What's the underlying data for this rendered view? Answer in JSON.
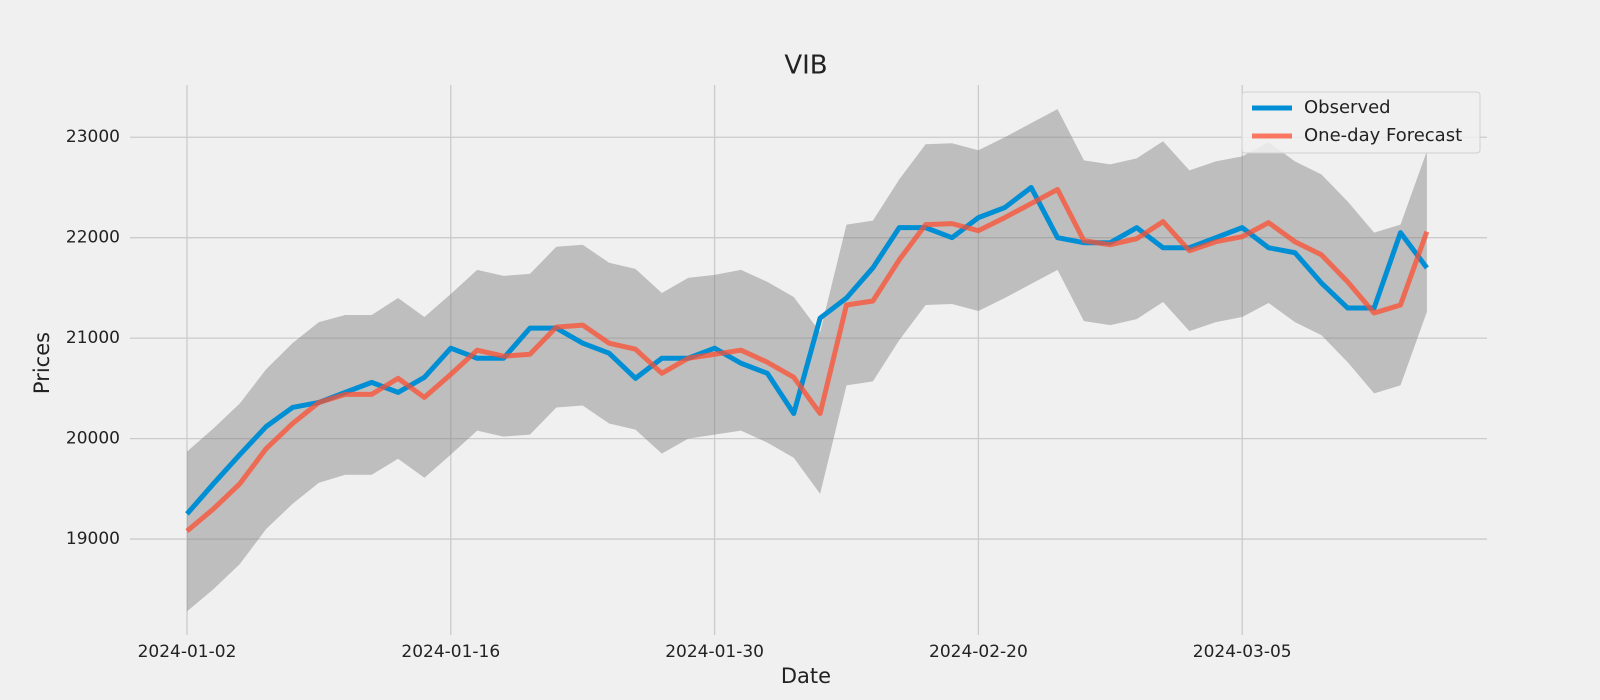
{
  "chart_data": {
    "type": "line",
    "title": "VIB",
    "x_label": "Date",
    "y_label": "Prices",
    "categories": [
      "2024-01-02",
      null,
      null,
      null,
      null,
      null,
      null,
      null,
      null,
      null,
      "2024-01-16",
      null,
      null,
      null,
      null,
      null,
      null,
      null,
      null,
      null,
      "2024-01-30",
      null,
      null,
      null,
      null,
      null,
      null,
      null,
      null,
      null,
      "2024-02-20",
      null,
      null,
      null,
      null,
      null,
      null,
      null,
      null,
      null,
      "2024-03-05",
      null,
      null,
      null,
      null,
      null,
      null,
      null
    ],
    "series": [
      {
        "name": "Observed",
        "color": "#008fd5",
        "opacity": 1,
        "values": [
          19250,
          19550,
          19840,
          20120,
          20310,
          20360,
          20460,
          20560,
          20460,
          20610,
          20900,
          20800,
          20800,
          21100,
          21100,
          20950,
          20850,
          20600,
          20800,
          20800,
          20900,
          20750,
          20650,
          20250,
          21200,
          21400,
          21700,
          22100,
          22100,
          22000,
          22200,
          22300,
          22500,
          22000,
          21950,
          21950,
          22100,
          21900,
          21900,
          22000,
          22100,
          21900,
          21850,
          21550,
          21300,
          21300,
          22050,
          21700
        ]
      },
      {
        "name": "One-day Forecast",
        "color": "#fc4f30",
        "opacity": 0.75,
        "values": [
          19080,
          19300,
          19550,
          19900,
          20150,
          20360,
          20440,
          20440,
          20600,
          20410,
          20640,
          20880,
          20820,
          20840,
          21110,
          21130,
          20950,
          20890,
          20650,
          20800,
          20840,
          20880,
          20760,
          20610,
          20250,
          21330,
          21370,
          21780,
          22130,
          22140,
          22070,
          22200,
          22340,
          22480,
          21970,
          21930,
          21990,
          22160,
          21870,
          21960,
          22010,
          22150,
          21960,
          21830,
          21560,
          21250,
          21330,
          22060
        ]
      }
    ],
    "band": {
      "color": "#808080",
      "opacity": 0.45,
      "upper": [
        19870,
        20100,
        20350,
        20690,
        20950,
        21160,
        21230,
        21230,
        21400,
        21210,
        21440,
        21680,
        21620,
        21640,
        21910,
        21930,
        21750,
        21690,
        21450,
        21600,
        21630,
        21680,
        21560,
        21410,
        21060,
        22130,
        22170,
        22580,
        22930,
        22940,
        22870,
        23000,
        23140,
        23280,
        22770,
        22730,
        22790,
        22960,
        22670,
        22760,
        22810,
        22950,
        22760,
        22630,
        22360,
        22050,
        22130,
        22860
      ],
      "lower": [
        18280,
        18500,
        18750,
        19100,
        19350,
        19560,
        19640,
        19640,
        19800,
        19610,
        19840,
        20080,
        20020,
        20040,
        20310,
        20330,
        20150,
        20090,
        19850,
        20000,
        20040,
        20080,
        19960,
        19810,
        19450,
        20530,
        20570,
        20980,
        21330,
        21340,
        21270,
        21400,
        21540,
        21680,
        21170,
        21130,
        21190,
        21360,
        21070,
        21160,
        21210,
        21350,
        21160,
        21030,
        20760,
        20450,
        20530,
        21260
      ]
    },
    "ylim": [
      18045,
      23520
    ],
    "yticks": [
      19000,
      20000,
      21000,
      22000,
      23000
    ],
    "grid": true,
    "legend": "upper right"
  }
}
